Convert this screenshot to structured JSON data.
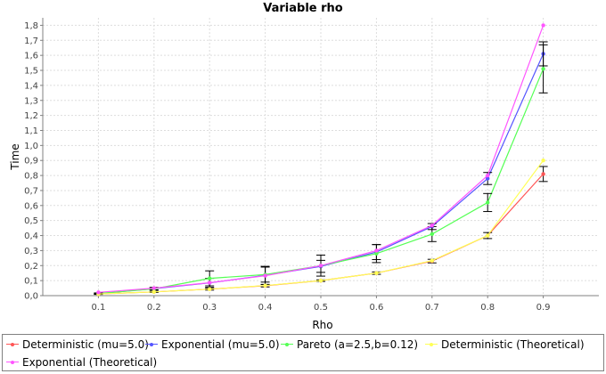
{
  "chart_data": {
    "type": "line",
    "title": "Variable rho",
    "xlabel": "Rho",
    "ylabel": "Time",
    "x": [
      0.1,
      0.2,
      0.3,
      0.4,
      0.5,
      0.6,
      0.7,
      0.8,
      0.9
    ],
    "x_tick_labels": [
      "0.1",
      "0.2",
      "0.3",
      "0.4",
      "0.5",
      "0.6",
      "0.7",
      "0.8",
      "0.9"
    ],
    "y_tick_labels": [
      "0,0",
      "0,1",
      "0,2",
      "0,3",
      "0,4",
      "0,5",
      "0,6",
      "0,7",
      "0,8",
      "0,9",
      "1,0",
      "1,1",
      "1,2",
      "1,3",
      "1,4",
      "1,5",
      "1,6",
      "1,7",
      "1,8"
    ],
    "xlim": [
      0.0,
      1.0
    ],
    "ylim": [
      0.0,
      1.85
    ],
    "grid": true,
    "legend_position": "bottom",
    "series": [
      {
        "name": "Deterministic (mu=5.0)",
        "color": "#ff5555",
        "values": [
          0.011,
          0.025,
          0.043,
          0.066,
          0.1,
          0.15,
          0.23,
          0.4,
          0.81
        ],
        "error": [
          0.003,
          0.004,
          0.006,
          0.008,
          0.005,
          0.008,
          0.012,
          0.02,
          0.05
        ]
      },
      {
        "name": "Exponential (mu=5.0)",
        "color": "#5555ff",
        "values": [
          0.013,
          0.047,
          0.085,
          0.135,
          0.195,
          0.29,
          0.46,
          0.78,
          1.61
        ],
        "error": [
          0.004,
          0.008,
          0.03,
          0.06,
          0.04,
          0.05,
          0.02,
          0.04,
          0.08
        ]
      },
      {
        "name": "Pareto (a=2.5,b=0.12)",
        "color": "#55ff55",
        "values": [
          0.014,
          0.045,
          0.115,
          0.14,
          0.2,
          0.28,
          0.41,
          0.62,
          1.51
        ],
        "error": [
          0.004,
          0.008,
          0.05,
          0.05,
          0.07,
          0.06,
          0.05,
          0.06,
          0.16
        ]
      },
      {
        "name": "Deterministic (Theoretical)",
        "color": "#ffff55",
        "values": [
          0.011,
          0.025,
          0.043,
          0.067,
          0.1,
          0.15,
          0.233,
          0.4,
          0.9
        ],
        "error": []
      },
      {
        "name": "Exponential (Theoretical)",
        "color": "#ff55ff",
        "values": [
          0.022,
          0.05,
          0.086,
          0.133,
          0.2,
          0.3,
          0.467,
          0.8,
          1.8
        ],
        "error": []
      }
    ]
  }
}
